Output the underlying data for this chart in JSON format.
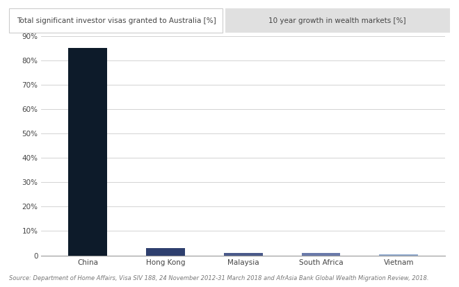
{
  "categories": [
    "China",
    "Hong Kong",
    "Malaysia",
    "South Africa",
    "Vietnam"
  ],
  "bar1_values": [
    85,
    3,
    1,
    1,
    0.5
  ],
  "bar1_colors": [
    "#0d1b2a",
    "#2e3f6e",
    "#4a5a8a",
    "#6a7aaa",
    "#8fa8cc"
  ],
  "bar_width": 0.5,
  "ylim": [
    0,
    90
  ],
  "yticks": [
    0,
    10,
    20,
    30,
    40,
    50,
    60,
    70,
    80,
    90
  ],
  "ytick_labels": [
    "0",
    "10%",
    "20%",
    "30%",
    "40%",
    "50%",
    "60%",
    "70%",
    "80%",
    "90%"
  ],
  "legend1_label": "Total significant investor visas granted to Australia [%]",
  "legend2_label": "10 year growth in wealth markets [%]",
  "legend1_bg": "#ffffff",
  "legend2_bg": "#e0e0e0",
  "source_text": "Source: Department of Home Affairs, Visa SIV 188, 24 November 2012-31 March 2018 and AfrAsia Bank Global Wealth Migration Review, 2018.",
  "background_color": "#ffffff",
  "grid_color": "#cccccc",
  "text_color": "#444444",
  "font_size": 7.5,
  "legend_border_color": "#cccccc"
}
